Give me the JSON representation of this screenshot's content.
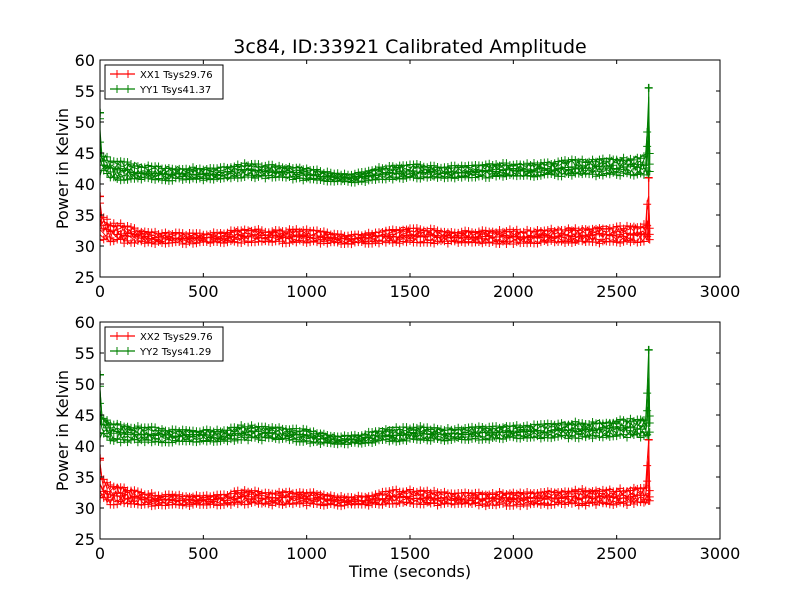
{
  "figure": {
    "title": "3c84, ID:33921 Calibrated Amplitude",
    "xlabel": "Time (seconds)"
  },
  "colors": {
    "xx": "#ff0000",
    "yy": "#008000"
  },
  "chart_data": [
    {
      "type": "line",
      "title": "3c84, ID:33921 Calibrated Amplitude",
      "xlabel": "",
      "ylabel": "Power in Kelvin",
      "xlim": [
        0,
        3000
      ],
      "ylim": [
        25,
        60
      ],
      "xticks": [
        0,
        500,
        1000,
        1500,
        2000,
        2500,
        3000
      ],
      "yticks": [
        25,
        30,
        35,
        40,
        45,
        50,
        55,
        60
      ],
      "grid": false,
      "legend_position": "top-left",
      "marker": "+",
      "series": [
        {
          "name": "XX1 Tsys29.76",
          "color": "#ff0000",
          "x": [
            0,
            10,
            50,
            100,
            150,
            200,
            250,
            300,
            350,
            400,
            450,
            500,
            550,
            600,
            650,
            700,
            750,
            800,
            850,
            900,
            950,
            1000,
            1050,
            1100,
            1150,
            1200,
            1250,
            1300,
            1350,
            1400,
            1450,
            1500,
            1550,
            1600,
            1650,
            1700,
            1750,
            1800,
            1850,
            1900,
            1950,
            2000,
            2050,
            2100,
            2150,
            2200,
            2250,
            2300,
            2350,
            2400,
            2450,
            2500,
            2550,
            2600,
            2640,
            2655,
            2660
          ],
          "y_low": [
            30.8,
            31.2,
            30.5,
            30.4,
            30.3,
            30.4,
            30.3,
            30.3,
            30.4,
            30.3,
            30.3,
            30.4,
            30.3,
            30.4,
            30.4,
            30.5,
            30.5,
            30.4,
            30.4,
            30.4,
            30.5,
            30.4,
            30.4,
            30.3,
            30.3,
            30.3,
            30.3,
            30.3,
            30.4,
            30.4,
            30.4,
            30.5,
            30.5,
            30.4,
            30.4,
            30.4,
            30.4,
            30.4,
            30.3,
            30.3,
            30.3,
            30.3,
            30.3,
            30.3,
            30.4,
            30.4,
            30.4,
            30.4,
            30.4,
            30.4,
            30.4,
            30.4,
            30.4,
            30.5,
            30.6,
            30.5,
            31.0
          ],
          "y_high": [
            38.0,
            35.0,
            34.0,
            33.8,
            33.2,
            32.6,
            32.4,
            32.2,
            32.3,
            32.1,
            32.2,
            32.1,
            32.2,
            32.3,
            32.8,
            33.0,
            32.8,
            32.6,
            32.7,
            32.8,
            32.8,
            32.7,
            32.6,
            32.3,
            32.0,
            31.9,
            32.0,
            32.2,
            32.5,
            32.9,
            33.0,
            33.0,
            32.9,
            32.8,
            32.7,
            32.6,
            32.5,
            32.5,
            32.6,
            32.6,
            32.7,
            32.7,
            32.6,
            32.7,
            32.8,
            32.9,
            32.9,
            33.0,
            33.1,
            33.1,
            33.2,
            33.2,
            33.3,
            33.4,
            33.6,
            41.0,
            33.0
          ]
        },
        {
          "name": "YY1 Tsys41.37",
          "color": "#008000",
          "x": [
            0,
            10,
            50,
            100,
            150,
            200,
            250,
            300,
            350,
            400,
            450,
            500,
            550,
            600,
            650,
            700,
            750,
            800,
            850,
            900,
            950,
            1000,
            1050,
            1100,
            1150,
            1200,
            1250,
            1300,
            1350,
            1400,
            1450,
            1500,
            1550,
            1600,
            1650,
            1700,
            1750,
            1800,
            1850,
            1900,
            1950,
            2000,
            2050,
            2100,
            2150,
            2200,
            2250,
            2300,
            2350,
            2400,
            2450,
            2500,
            2550,
            2600,
            2640,
            2655,
            2660
          ],
          "y_low": [
            41.0,
            42.0,
            40.6,
            40.5,
            40.5,
            40.6,
            40.6,
            40.5,
            40.5,
            40.6,
            40.6,
            40.6,
            40.6,
            40.6,
            40.8,
            40.9,
            40.9,
            40.9,
            40.9,
            40.8,
            40.6,
            40.5,
            40.3,
            40.3,
            40.2,
            40.2,
            40.2,
            40.3,
            40.5,
            40.6,
            40.7,
            40.8,
            40.8,
            40.8,
            40.8,
            40.8,
            40.9,
            40.9,
            40.9,
            41.0,
            41.1,
            41.1,
            41.1,
            41.1,
            41.2,
            41.2,
            41.2,
            41.2,
            41.2,
            41.2,
            41.2,
            41.3,
            41.3,
            41.3,
            41.4,
            41.0,
            42.0
          ],
          "y_high": [
            51.5,
            45.0,
            44.0,
            43.8,
            43.5,
            43.2,
            43.1,
            42.9,
            42.8,
            42.8,
            42.7,
            42.7,
            42.7,
            42.8,
            43.2,
            43.5,
            43.4,
            43.2,
            43.1,
            43.0,
            42.9,
            42.7,
            42.5,
            42.0,
            41.8,
            41.7,
            41.9,
            42.3,
            42.8,
            43.0,
            43.1,
            43.2,
            43.3,
            43.0,
            42.9,
            43.0,
            43.0,
            43.1,
            43.2,
            43.3,
            43.4,
            43.5,
            43.4,
            43.5,
            43.6,
            43.7,
            43.9,
            44.0,
            44.0,
            44.1,
            44.2,
            44.3,
            44.4,
            44.5,
            44.8,
            55.5,
            45.0
          ]
        }
      ]
    },
    {
      "type": "line",
      "title": "",
      "xlabel": "Time (seconds)",
      "ylabel": "Power in Kelvin",
      "xlim": [
        0,
        3000
      ],
      "ylim": [
        25,
        60
      ],
      "xticks": [
        0,
        500,
        1000,
        1500,
        2000,
        2500,
        3000
      ],
      "yticks": [
        25,
        30,
        35,
        40,
        45,
        50,
        55,
        60
      ],
      "grid": false,
      "legend_position": "top-left",
      "marker": "+",
      "series": [
        {
          "name": "XX2 Tsys29.76",
          "color": "#ff0000",
          "x": [
            0,
            10,
            50,
            100,
            150,
            200,
            250,
            300,
            350,
            400,
            450,
            500,
            550,
            600,
            650,
            700,
            750,
            800,
            850,
            900,
            950,
            1000,
            1050,
            1100,
            1150,
            1200,
            1250,
            1300,
            1350,
            1400,
            1450,
            1500,
            1550,
            1600,
            1650,
            1700,
            1750,
            1800,
            1850,
            1900,
            1950,
            2000,
            2050,
            2100,
            2150,
            2200,
            2250,
            2300,
            2350,
            2400,
            2450,
            2500,
            2550,
            2600,
            2640,
            2655,
            2660
          ],
          "y_low": [
            30.8,
            31.2,
            30.5,
            30.4,
            30.3,
            30.4,
            30.3,
            30.3,
            30.4,
            30.3,
            30.3,
            30.4,
            30.3,
            30.4,
            30.4,
            30.5,
            30.5,
            30.4,
            30.4,
            30.4,
            30.5,
            30.4,
            30.4,
            30.3,
            30.3,
            30.3,
            30.3,
            30.3,
            30.4,
            30.4,
            30.4,
            30.5,
            30.5,
            30.4,
            30.4,
            30.4,
            30.4,
            30.4,
            30.3,
            30.3,
            30.3,
            30.3,
            30.3,
            30.3,
            30.4,
            30.4,
            30.4,
            30.4,
            30.4,
            30.4,
            30.4,
            30.4,
            30.4,
            30.5,
            30.6,
            30.5,
            31.0
          ],
          "y_high": [
            38.0,
            35.0,
            34.0,
            33.8,
            33.2,
            32.6,
            32.4,
            32.2,
            32.3,
            32.1,
            32.2,
            32.1,
            32.2,
            32.3,
            32.8,
            33.0,
            32.8,
            32.6,
            32.7,
            32.8,
            32.8,
            32.7,
            32.6,
            32.3,
            32.0,
            31.9,
            32.0,
            32.2,
            32.5,
            32.9,
            33.0,
            33.0,
            32.9,
            32.8,
            32.7,
            32.6,
            32.5,
            32.5,
            32.6,
            32.6,
            32.7,
            32.7,
            32.6,
            32.7,
            32.8,
            32.9,
            32.9,
            33.0,
            33.1,
            33.1,
            33.2,
            33.2,
            33.3,
            33.4,
            33.6,
            41.0,
            33.0
          ]
        },
        {
          "name": "YY2 Tsys41.29",
          "color": "#008000",
          "x": [
            0,
            10,
            50,
            100,
            150,
            200,
            250,
            300,
            350,
            400,
            450,
            500,
            550,
            600,
            650,
            700,
            750,
            800,
            850,
            900,
            950,
            1000,
            1050,
            1100,
            1150,
            1200,
            1250,
            1300,
            1350,
            1400,
            1450,
            1500,
            1550,
            1600,
            1650,
            1700,
            1750,
            1800,
            1850,
            1900,
            1950,
            2000,
            2050,
            2100,
            2150,
            2200,
            2250,
            2300,
            2350,
            2400,
            2450,
            2500,
            2550,
            2600,
            2640,
            2655,
            2660
          ],
          "y_low": [
            41.0,
            42.0,
            40.6,
            40.5,
            40.5,
            40.6,
            40.6,
            40.5,
            40.5,
            40.6,
            40.6,
            40.6,
            40.6,
            40.6,
            40.8,
            40.9,
            40.9,
            40.9,
            40.9,
            40.8,
            40.6,
            40.5,
            40.3,
            40.3,
            40.2,
            40.2,
            40.2,
            40.3,
            40.5,
            40.6,
            40.7,
            40.8,
            40.8,
            40.8,
            40.8,
            40.8,
            40.9,
            40.9,
            40.9,
            41.0,
            41.1,
            41.1,
            41.1,
            41.1,
            41.2,
            41.2,
            41.2,
            41.2,
            41.2,
            41.2,
            41.2,
            41.3,
            41.3,
            41.3,
            41.4,
            41.0,
            42.0
          ],
          "y_high": [
            51.5,
            45.0,
            44.0,
            43.8,
            43.5,
            43.2,
            43.1,
            42.9,
            42.8,
            42.8,
            42.7,
            42.7,
            42.7,
            42.8,
            43.2,
            43.5,
            43.4,
            43.2,
            43.1,
            43.0,
            42.9,
            42.7,
            42.5,
            42.0,
            41.8,
            41.7,
            41.9,
            42.3,
            42.8,
            43.0,
            43.1,
            43.2,
            43.3,
            43.0,
            42.9,
            43.0,
            43.0,
            43.1,
            43.2,
            43.3,
            43.4,
            43.5,
            43.4,
            43.5,
            43.6,
            43.7,
            43.9,
            44.0,
            44.0,
            44.1,
            44.2,
            44.3,
            44.4,
            44.5,
            44.8,
            55.5,
            45.0
          ]
        }
      ]
    }
  ]
}
